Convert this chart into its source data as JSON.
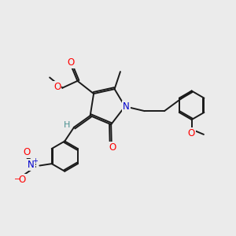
{
  "background_color": "#ebebeb",
  "figsize": [
    3.0,
    3.0
  ],
  "dpi": 100,
  "bond_color": "#1a1a1a",
  "atom_colors": {
    "O": "#ff0000",
    "N_ring": "#0000cc",
    "N_no2": "#0000cc",
    "H": "#4a9090",
    "C": "#1a1a1a"
  },
  "lw": 1.4
}
